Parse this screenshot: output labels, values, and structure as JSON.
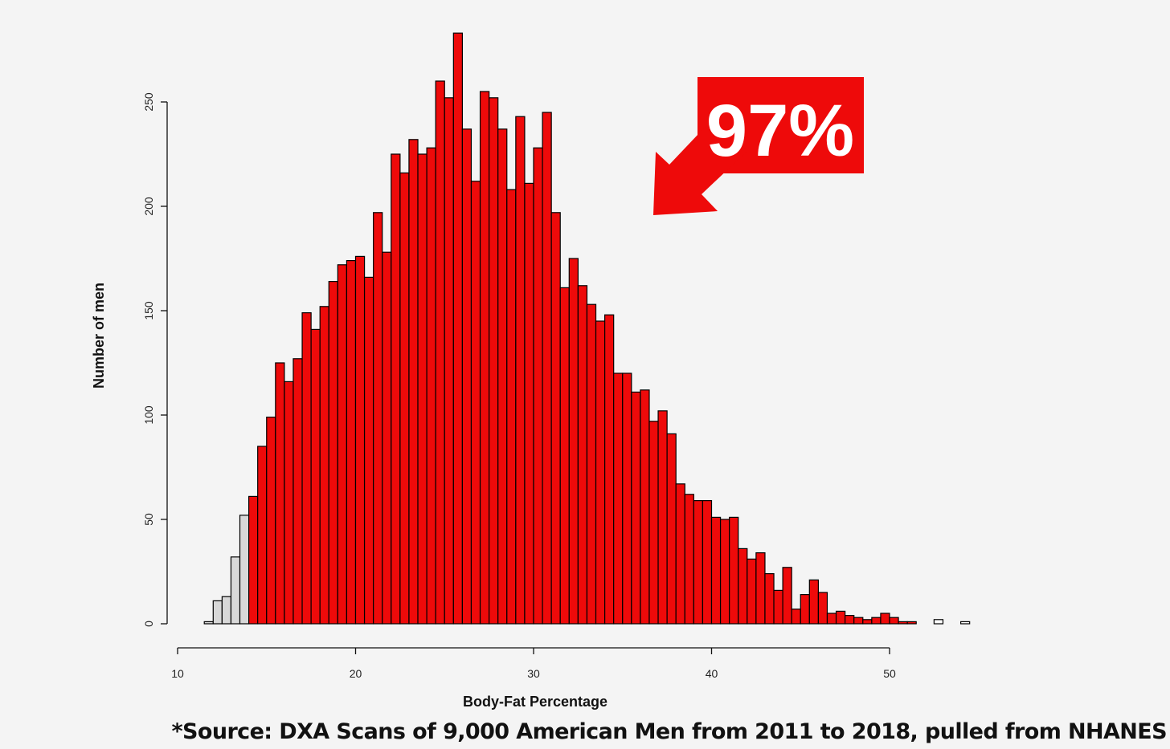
{
  "chart_data": {
    "type": "bar",
    "subtype": "histogram",
    "xlabel": "Body-Fat Percentage",
    "ylabel": "Number of men",
    "xlim": [
      10,
      54.5
    ],
    "ylim": [
      0,
      285
    ],
    "x_ticks": [
      "10",
      "20",
      "30",
      "40",
      "50"
    ],
    "y_ticks": [
      "0",
      "50",
      "100",
      "150",
      "200",
      "250"
    ],
    "bin_width": 0.5,
    "bin_start": 11.5,
    "counts": [
      1,
      11,
      13,
      32,
      52,
      61,
      85,
      99,
      125,
      116,
      127,
      149,
      141,
      152,
      164,
      172,
      174,
      176,
      166,
      197,
      178,
      225,
      216,
      232,
      225,
      228,
      260,
      252,
      283,
      237,
      212,
      255,
      252,
      237,
      208,
      243,
      211,
      228,
      245,
      197,
      161,
      175,
      162,
      153,
      145,
      148,
      120,
      120,
      111,
      112,
      97,
      102,
      91,
      67,
      62,
      59,
      59,
      51,
      50,
      51,
      36,
      31,
      34,
      24,
      16,
      27,
      7,
      14,
      21,
      15,
      5,
      6,
      4,
      3,
      2,
      3,
      5,
      3,
      1,
      1,
      0,
      0,
      2,
      0,
      0,
      1
    ],
    "gray_bins_count": 5,
    "colors": {
      "highlight": "#ee0a0a",
      "base": "#d8d8d8",
      "outline": "#000000"
    },
    "annotation": "97%",
    "grid": false
  },
  "source_note": "*Source: DXA Scans of 9,000 American Men from 2011 to 2018, pulled from NHANES"
}
